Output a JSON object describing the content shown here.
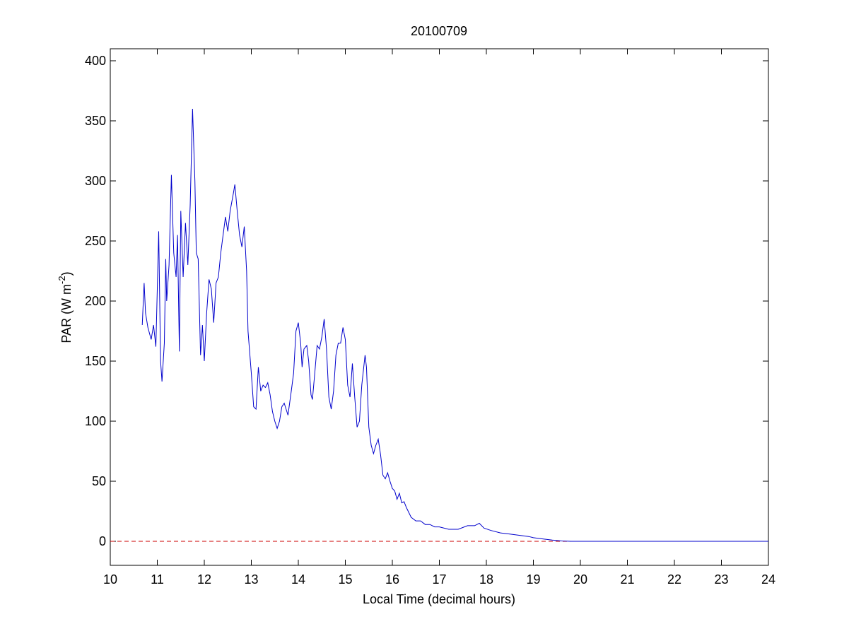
{
  "chart_data": {
    "type": "line",
    "title": "20100709",
    "xlabel": "Local Time (decimal hours)",
    "ylabel": [
      "PAR (W m",
      "-2",
      ")"
    ],
    "x": [
      10.68,
      10.72,
      10.75,
      10.8,
      10.87,
      10.92,
      10.97,
      11.0,
      11.03,
      11.07,
      11.1,
      11.15,
      11.18,
      11.2,
      11.25,
      11.3,
      11.35,
      11.4,
      11.43,
      11.47,
      11.5,
      11.55,
      11.6,
      11.65,
      11.7,
      11.75,
      11.8,
      11.83,
      11.87,
      11.92,
      11.96,
      12.0,
      12.05,
      12.1,
      12.15,
      12.2,
      12.25,
      12.3,
      12.35,
      12.45,
      12.5,
      12.55,
      12.62,
      12.65,
      12.7,
      12.75,
      12.8,
      12.85,
      12.9,
      12.93,
      12.96,
      13.0,
      13.05,
      13.1,
      13.15,
      13.2,
      13.25,
      13.3,
      13.35,
      13.4,
      13.45,
      13.5,
      13.55,
      13.6,
      13.65,
      13.7,
      13.78,
      13.85,
      13.9,
      13.95,
      14.0,
      14.05,
      14.08,
      14.12,
      14.18,
      14.22,
      14.27,
      14.3,
      14.35,
      14.4,
      14.45,
      14.5,
      14.55,
      14.6,
      14.65,
      14.7,
      14.75,
      14.8,
      14.85,
      14.9,
      14.95,
      15.0,
      15.05,
      15.1,
      15.15,
      15.2,
      15.25,
      15.3,
      15.35,
      15.42,
      15.45,
      15.5,
      15.55,
      15.6,
      15.65,
      15.7,
      15.75,
      15.8,
      15.85,
      15.9,
      15.95,
      16.0,
      16.05,
      16.1,
      16.15,
      16.2,
      16.25,
      16.3,
      16.4,
      16.5,
      16.6,
      16.7,
      16.8,
      16.9,
      17.0,
      17.2,
      17.4,
      17.6,
      17.75,
      17.85,
      17.95,
      18.1,
      18.3,
      18.5,
      18.7,
      18.9,
      19.0,
      19.2,
      19.4,
      19.6,
      19.8,
      20.5,
      22,
      24
    ],
    "series": [
      {
        "color": "#0000cc",
        "values": [
          180,
          215,
          190,
          178,
          168,
          180,
          162,
          210,
          258,
          150,
          133,
          165,
          235,
          200,
          230,
          305,
          240,
          220,
          255,
          158,
          275,
          220,
          265,
          230,
          280,
          360,
          300,
          240,
          235,
          155,
          180,
          150,
          190,
          218,
          210,
          182,
          215,
          220,
          240,
          270,
          258,
          275,
          290,
          297,
          275,
          255,
          245,
          262,
          225,
          175,
          160,
          140,
          112,
          110,
          145,
          125,
          130,
          128,
          132,
          122,
          108,
          100,
          94,
          100,
          112,
          115,
          105,
          125,
          140,
          175,
          182,
          165,
          145,
          160,
          163,
          150,
          122,
          118,
          140,
          163,
          160,
          170,
          185,
          160,
          120,
          110,
          125,
          155,
          165,
          165,
          178,
          168,
          130,
          120,
          148,
          120,
          95,
          100,
          130,
          155,
          145,
          95,
          80,
          73,
          80,
          85,
          72,
          55,
          52,
          57,
          50,
          44,
          42,
          35,
          40,
          32,
          33,
          28,
          20,
          17,
          17,
          14,
          14,
          12,
          12,
          10,
          10,
          13,
          13,
          15,
          11,
          9,
          7,
          6,
          5,
          4,
          3,
          2,
          1,
          0.3,
          0,
          0,
          0,
          0
        ]
      }
    ],
    "hline": {
      "y": 0,
      "color": "#cc0000",
      "style": "dashed"
    },
    "xlim": [
      10,
      24
    ],
    "xticks": [
      10,
      11,
      12,
      13,
      14,
      15,
      16,
      17,
      18,
      19,
      20,
      21,
      22,
      23,
      24
    ],
    "ylim": [
      -20,
      410
    ],
    "yticks": [
      0,
      50,
      100,
      150,
      200,
      250,
      300,
      350,
      400
    ]
  }
}
